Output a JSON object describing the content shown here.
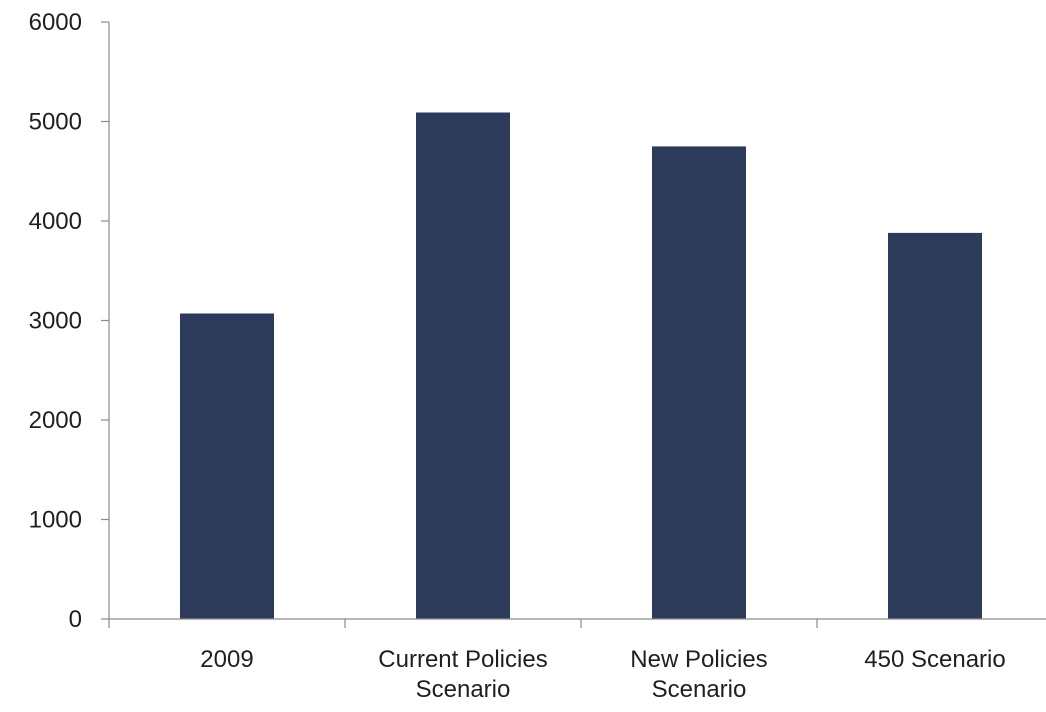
{
  "chart_data": {
    "type": "bar",
    "title": "",
    "xlabel": "",
    "ylabel": "",
    "categories": [
      [
        "2009"
      ],
      [
        "Current Policies",
        "Scenario"
      ],
      [
        "New Policies",
        "Scenario"
      ],
      [
        "450 Scenario"
      ]
    ],
    "values": [
      3070,
      5090,
      4750,
      3880
    ],
    "ylim": [
      0,
      6000
    ],
    "yticks": [
      0,
      1000,
      2000,
      3000,
      4000,
      5000,
      6000
    ],
    "grid": false,
    "legend": "none",
    "bar_color": "#2d3b5a",
    "axis_color": "#8c8c8c"
  }
}
